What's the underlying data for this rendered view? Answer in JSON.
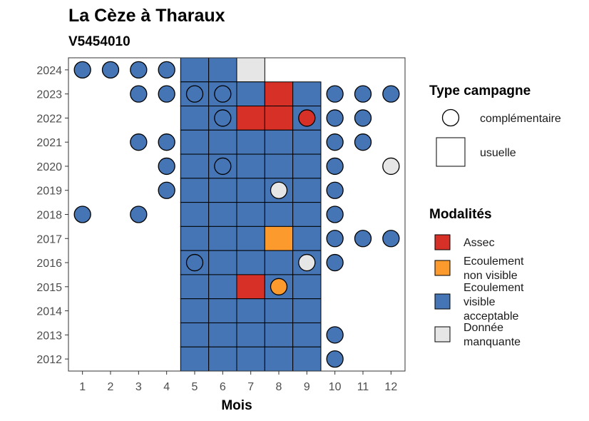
{
  "chart_data": {
    "type": "heatmap",
    "title": "La Cèze à Tharaux",
    "subtitle": "V5454010",
    "xlabel": "Mois",
    "ylabel": "",
    "x_ticks": [
      "1",
      "2",
      "3",
      "4",
      "5",
      "6",
      "7",
      "8",
      "9",
      "10",
      "11",
      "12"
    ],
    "y_ticks": [
      "2012",
      "2013",
      "2014",
      "2015",
      "2016",
      "2017",
      "2018",
      "2019",
      "2020",
      "2021",
      "2022",
      "2023",
      "2024"
    ],
    "xlim": [
      0.5,
      12.5
    ],
    "ylim": [
      2011.5,
      2024.5
    ],
    "colors": {
      "Assec": "#d73027",
      "Ecoulement non visible": "#fd9a2d",
      "Ecoulement visible acceptable": "#4575b4",
      "Donnée manquante": "#e6e6e6"
    },
    "legend": {
      "type_title": "Type campagne",
      "types": [
        {
          "key": "complementaire",
          "label": "complémentaire"
        },
        {
          "key": "usuelle",
          "label": "usuelle"
        }
      ],
      "modalites_title": "Modalités",
      "modalites": [
        {
          "key": "Assec",
          "lines": [
            "Assec"
          ]
        },
        {
          "key": "Ecoulement non visible",
          "lines": [
            "Ecoulement",
            "non visible"
          ]
        },
        {
          "key": "Ecoulement visible acceptable",
          "lines": [
            "Ecoulement",
            "visible",
            "acceptable"
          ]
        },
        {
          "key": "Donnée manquante",
          "lines": [
            "Donnée",
            "manquante"
          ]
        }
      ]
    },
    "usuelle": [
      {
        "year": 2024,
        "month": 5,
        "status": "Ecoulement visible acceptable"
      },
      {
        "year": 2024,
        "month": 6,
        "status": "Ecoulement visible acceptable"
      },
      {
        "year": 2024,
        "month": 7,
        "status": "Donnée manquante"
      },
      {
        "year": 2023,
        "month": 5,
        "status": "Ecoulement visible acceptable"
      },
      {
        "year": 2023,
        "month": 6,
        "status": "Ecoulement visible acceptable"
      },
      {
        "year": 2023,
        "month": 7,
        "status": "Ecoulement visible acceptable"
      },
      {
        "year": 2023,
        "month": 8,
        "status": "Assec"
      },
      {
        "year": 2023,
        "month": 9,
        "status": "Ecoulement visible acceptable"
      },
      {
        "year": 2022,
        "month": 5,
        "status": "Ecoulement visible acceptable"
      },
      {
        "year": 2022,
        "month": 6,
        "status": "Ecoulement visible acceptable"
      },
      {
        "year": 2022,
        "month": 7,
        "status": "Assec"
      },
      {
        "year": 2022,
        "month": 8,
        "status": "Assec"
      },
      {
        "year": 2022,
        "month": 9,
        "status": "Ecoulement visible acceptable"
      },
      {
        "year": 2021,
        "month": 5,
        "status": "Ecoulement visible acceptable"
      },
      {
        "year": 2021,
        "month": 6,
        "status": "Ecoulement visible acceptable"
      },
      {
        "year": 2021,
        "month": 7,
        "status": "Ecoulement visible acceptable"
      },
      {
        "year": 2021,
        "month": 8,
        "status": "Ecoulement visible acceptable"
      },
      {
        "year": 2021,
        "month": 9,
        "status": "Ecoulement visible acceptable"
      },
      {
        "year": 2020,
        "month": 5,
        "status": "Ecoulement visible acceptable"
      },
      {
        "year": 2020,
        "month": 6,
        "status": "Ecoulement visible acceptable"
      },
      {
        "year": 2020,
        "month": 7,
        "status": "Ecoulement visible acceptable"
      },
      {
        "year": 2020,
        "month": 8,
        "status": "Ecoulement visible acceptable"
      },
      {
        "year": 2020,
        "month": 9,
        "status": "Ecoulement visible acceptable"
      },
      {
        "year": 2019,
        "month": 5,
        "status": "Ecoulement visible acceptable"
      },
      {
        "year": 2019,
        "month": 6,
        "status": "Ecoulement visible acceptable"
      },
      {
        "year": 2019,
        "month": 7,
        "status": "Ecoulement visible acceptable"
      },
      {
        "year": 2019,
        "month": 8,
        "status": "Ecoulement visible acceptable"
      },
      {
        "year": 2019,
        "month": 9,
        "status": "Ecoulement visible acceptable"
      },
      {
        "year": 2018,
        "month": 5,
        "status": "Ecoulement visible acceptable"
      },
      {
        "year": 2018,
        "month": 6,
        "status": "Ecoulement visible acceptable"
      },
      {
        "year": 2018,
        "month": 7,
        "status": "Ecoulement visible acceptable"
      },
      {
        "year": 2018,
        "month": 8,
        "status": "Ecoulement visible acceptable"
      },
      {
        "year": 2018,
        "month": 9,
        "status": "Ecoulement visible acceptable"
      },
      {
        "year": 2017,
        "month": 5,
        "status": "Ecoulement visible acceptable"
      },
      {
        "year": 2017,
        "month": 6,
        "status": "Ecoulement visible acceptable"
      },
      {
        "year": 2017,
        "month": 7,
        "status": "Ecoulement visible acceptable"
      },
      {
        "year": 2017,
        "month": 8,
        "status": "Ecoulement non visible"
      },
      {
        "year": 2017,
        "month": 9,
        "status": "Ecoulement visible acceptable"
      },
      {
        "year": 2016,
        "month": 5,
        "status": "Ecoulement visible acceptable"
      },
      {
        "year": 2016,
        "month": 6,
        "status": "Ecoulement visible acceptable"
      },
      {
        "year": 2016,
        "month": 7,
        "status": "Ecoulement visible acceptable"
      },
      {
        "year": 2016,
        "month": 8,
        "status": "Ecoulement visible acceptable"
      },
      {
        "year": 2016,
        "month": 9,
        "status": "Ecoulement visible acceptable"
      },
      {
        "year": 2015,
        "month": 5,
        "status": "Ecoulement visible acceptable"
      },
      {
        "year": 2015,
        "month": 6,
        "status": "Ecoulement visible acceptable"
      },
      {
        "year": 2015,
        "month": 7,
        "status": "Assec"
      },
      {
        "year": 2015,
        "month": 8,
        "status": "Ecoulement visible acceptable"
      },
      {
        "year": 2015,
        "month": 9,
        "status": "Ecoulement visible acceptable"
      },
      {
        "year": 2014,
        "month": 5,
        "status": "Ecoulement visible acceptable"
      },
      {
        "year": 2014,
        "month": 6,
        "status": "Ecoulement visible acceptable"
      },
      {
        "year": 2014,
        "month": 7,
        "status": "Ecoulement visible acceptable"
      },
      {
        "year": 2014,
        "month": 8,
        "status": "Ecoulement visible acceptable"
      },
      {
        "year": 2014,
        "month": 9,
        "status": "Ecoulement visible acceptable"
      },
      {
        "year": 2013,
        "month": 5,
        "status": "Ecoulement visible acceptable"
      },
      {
        "year": 2013,
        "month": 6,
        "status": "Ecoulement visible acceptable"
      },
      {
        "year": 2013,
        "month": 7,
        "status": "Ecoulement visible acceptable"
      },
      {
        "year": 2013,
        "month": 8,
        "status": "Ecoulement visible acceptable"
      },
      {
        "year": 2013,
        "month": 9,
        "status": "Ecoulement visible acceptable"
      },
      {
        "year": 2012,
        "month": 5,
        "status": "Ecoulement visible acceptable"
      },
      {
        "year": 2012,
        "month": 6,
        "status": "Ecoulement visible acceptable"
      },
      {
        "year": 2012,
        "month": 7,
        "status": "Ecoulement visible acceptable"
      },
      {
        "year": 2012,
        "month": 8,
        "status": "Ecoulement visible acceptable"
      },
      {
        "year": 2012,
        "month": 9,
        "status": "Ecoulement visible acceptable"
      }
    ],
    "complementaire": [
      {
        "year": 2024,
        "month": 1,
        "status": "Ecoulement visible acceptable"
      },
      {
        "year": 2024,
        "month": 2,
        "status": "Ecoulement visible acceptable"
      },
      {
        "year": 2024,
        "month": 3,
        "status": "Ecoulement visible acceptable"
      },
      {
        "year": 2024,
        "month": 4,
        "status": "Ecoulement visible acceptable"
      },
      {
        "year": 2023,
        "month": 3,
        "status": "Ecoulement visible acceptable"
      },
      {
        "year": 2023,
        "month": 4,
        "status": "Ecoulement visible acceptable"
      },
      {
        "year": 2023,
        "month": 5,
        "status": "Ecoulement visible acceptable"
      },
      {
        "year": 2023,
        "month": 6,
        "status": "Ecoulement visible acceptable"
      },
      {
        "year": 2023,
        "month": 10,
        "status": "Ecoulement visible acceptable"
      },
      {
        "year": 2023,
        "month": 11,
        "status": "Ecoulement visible acceptable"
      },
      {
        "year": 2023,
        "month": 12,
        "status": "Ecoulement visible acceptable"
      },
      {
        "year": 2022,
        "month": 6,
        "status": "Ecoulement visible acceptable"
      },
      {
        "year": 2022,
        "month": 9,
        "status": "Assec"
      },
      {
        "year": 2022,
        "month": 10,
        "status": "Ecoulement visible acceptable"
      },
      {
        "year": 2022,
        "month": 11,
        "status": "Ecoulement visible acceptable"
      },
      {
        "year": 2021,
        "month": 3,
        "status": "Ecoulement visible acceptable"
      },
      {
        "year": 2021,
        "month": 4,
        "status": "Ecoulement visible acceptable"
      },
      {
        "year": 2021,
        "month": 10,
        "status": "Ecoulement visible acceptable"
      },
      {
        "year": 2021,
        "month": 11,
        "status": "Ecoulement visible acceptable"
      },
      {
        "year": 2020,
        "month": 4,
        "status": "Ecoulement visible acceptable"
      },
      {
        "year": 2020,
        "month": 6,
        "status": "Ecoulement visible acceptable"
      },
      {
        "year": 2020,
        "month": 10,
        "status": "Ecoulement visible acceptable"
      },
      {
        "year": 2020,
        "month": 12,
        "status": "Donnée manquante"
      },
      {
        "year": 2019,
        "month": 4,
        "status": "Ecoulement visible acceptable"
      },
      {
        "year": 2019,
        "month": 8,
        "status": "Donnée manquante"
      },
      {
        "year": 2019,
        "month": 10,
        "status": "Ecoulement visible acceptable"
      },
      {
        "year": 2018,
        "month": 1,
        "status": "Ecoulement visible acceptable"
      },
      {
        "year": 2018,
        "month": 3,
        "status": "Ecoulement visible acceptable"
      },
      {
        "year": 2018,
        "month": 10,
        "status": "Ecoulement visible acceptable"
      },
      {
        "year": 2017,
        "month": 10,
        "status": "Ecoulement visible acceptable"
      },
      {
        "year": 2017,
        "month": 11,
        "status": "Ecoulement visible acceptable"
      },
      {
        "year": 2017,
        "month": 12,
        "status": "Ecoulement visible acceptable"
      },
      {
        "year": 2016,
        "month": 5,
        "status": "Ecoulement visible acceptable"
      },
      {
        "year": 2016,
        "month": 9,
        "status": "Donnée manquante"
      },
      {
        "year": 2016,
        "month": 10,
        "status": "Ecoulement visible acceptable"
      },
      {
        "year": 2015,
        "month": 8,
        "status": "Ecoulement non visible"
      },
      {
        "year": 2013,
        "month": 10,
        "status": "Ecoulement visible acceptable"
      },
      {
        "year": 2012,
        "month": 10,
        "status": "Ecoulement visible acceptable"
      }
    ]
  }
}
